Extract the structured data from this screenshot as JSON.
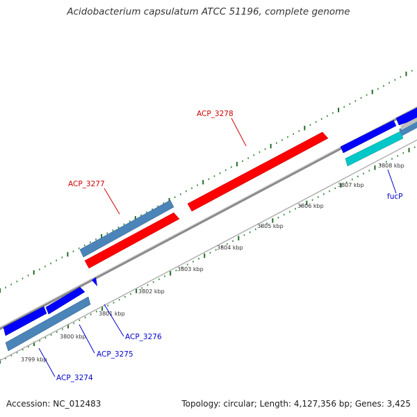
{
  "title": "Acidobacterium capsulatum ATCC 51196, complete genome",
  "footer": {
    "accession": "Accession: NC_012483",
    "summary": "Topology: circular; Length: 4,127,356 bp; Genes: 3,425"
  },
  "colors": {
    "forward_cds": "#ff0000",
    "reverse_cds": "#0000ff",
    "gene_shade": "#4a84b8",
    "highlight_gene": "#00c8c8",
    "backbone": "#808080",
    "tick": "#2e7d32",
    "label_forward": "#cc0000",
    "label_reverse": "#0000cc"
  },
  "scale_labels": [
    "3799 kbp",
    "3800 kbp",
    "3801 kbp",
    "3802 kbp",
    "3803 kbp",
    "3804 kbp",
    "3805 kbp",
    "3806 kbp",
    "3807 kbp",
    "3808 kbp"
  ],
  "gene_labels": [
    {
      "name": "ACP_3278",
      "strand": "forward"
    },
    {
      "name": "ACP_3277",
      "strand": "forward"
    },
    {
      "name": "ACP_3276",
      "strand": "reverse"
    },
    {
      "name": "ACP_3275",
      "strand": "reverse"
    },
    {
      "name": "ACP_3274",
      "strand": "reverse"
    },
    {
      "name": "fucP",
      "strand": "reverse"
    }
  ]
}
